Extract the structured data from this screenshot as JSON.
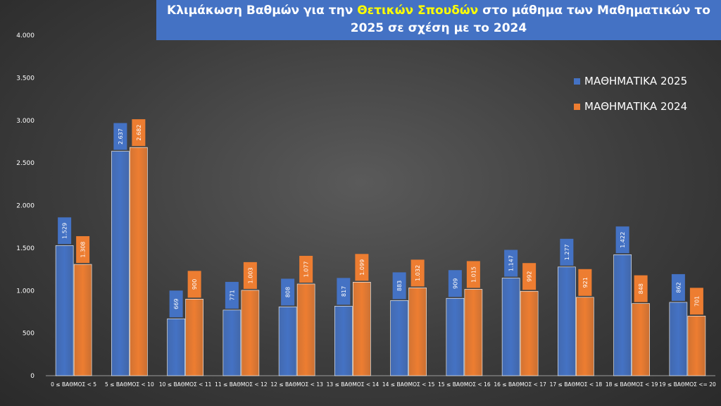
{
  "title": {
    "part1": "Κλιμάκωση Βαθμών για την ",
    "highlight": "Θετικών Σπουδών",
    "part2": " στο μάθημα των Μαθηματικών το 2025 σε σχέση με το 2024"
  },
  "chart_data": {
    "type": "bar",
    "categories": [
      "0 ≤ ΒΑΘΜΟΣ < 5",
      "5 ≤ ΒΑΘΜΟΣ < 10",
      "10 ≤ ΒΑΘΜΟΣ < 11",
      "11 ≤ ΒΑΘΜΟΣ < 12",
      "12 ≤ ΒΑΘΜΟΣ < 13",
      "13 ≤ ΒΑΘΜΟΣ < 14",
      "14 ≤ ΒΑΘΜΟΣ < 15",
      "15 ≤ ΒΑΘΜΟΣ < 16",
      "16 ≤ ΒΑΘΜΟΣ < 17",
      "17 ≤ ΒΑΘΜΟΣ < 18",
      "18 ≤ ΒΑΘΜΟΣ < 19",
      "19 ≤ ΒΑΘΜΟΣ <= 20"
    ],
    "series": [
      {
        "name": "ΜΑΘΗΜΑΤΙΚΑ 2025",
        "color": "#4472c4",
        "values": [
          1529,
          2637,
          669,
          771,
          808,
          817,
          883,
          909,
          1147,
          1277,
          1422,
          862
        ],
        "labels": [
          "1.529",
          "2.637",
          "669",
          "771",
          "808",
          "817",
          "883",
          "909",
          "1.147",
          "1.277",
          "1.422",
          "862"
        ]
      },
      {
        "name": "ΜΑΘΗΜΑΤΙΚΑ 2024",
        "color": "#ed7d31",
        "values": [
          1308,
          2682,
          900,
          1003,
          1077,
          1099,
          1032,
          1015,
          992,
          921,
          848,
          701
        ],
        "labels": [
          "1.308",
          "2.682",
          "900",
          "1.003",
          "1.077",
          "1.099",
          "1.032",
          "1.015",
          "992",
          "921",
          "848",
          "701"
        ]
      }
    ],
    "y_ticks": [
      0,
      500,
      1000,
      1500,
      2000,
      2500,
      3000,
      3500,
      4000
    ],
    "y_tick_labels": [
      "0",
      "500",
      "1.000",
      "1.500",
      "2.000",
      "2.500",
      "3.000",
      "3.500",
      "4.000"
    ],
    "ylim": [
      0,
      4000
    ],
    "grid": false,
    "legend_position": "top-right"
  }
}
